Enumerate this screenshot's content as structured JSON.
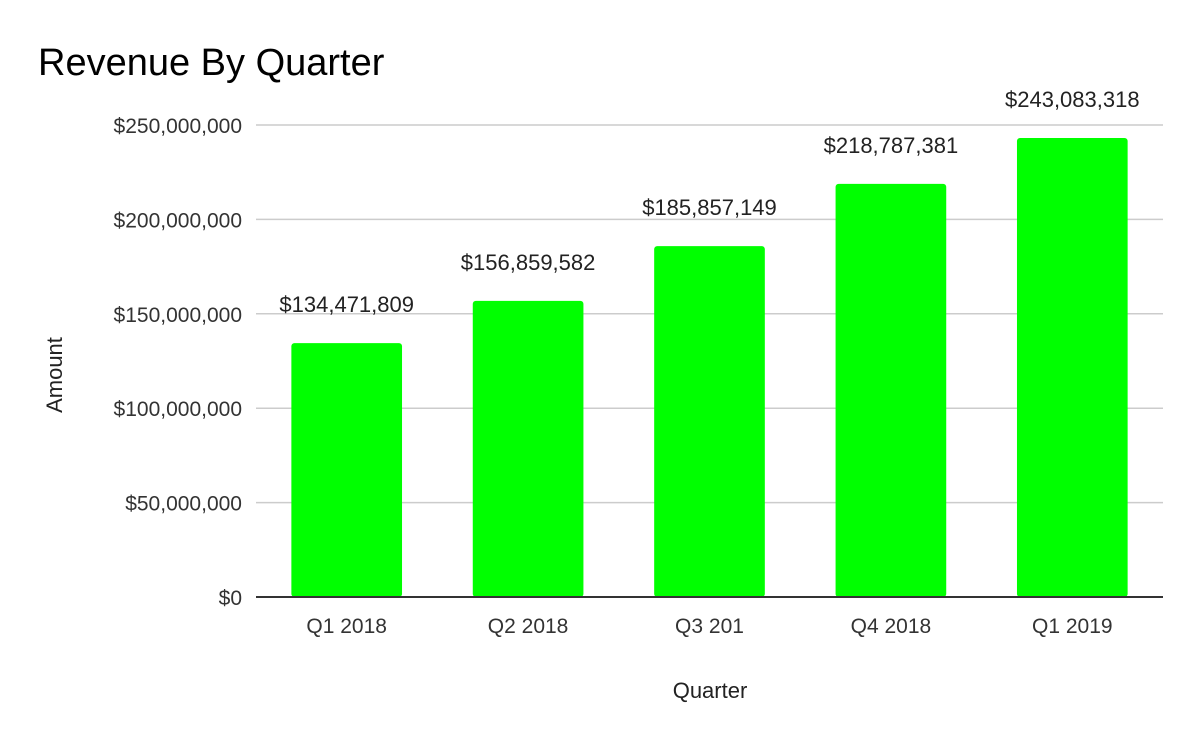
{
  "chart_data": {
    "type": "bar",
    "title": "Revenue By Quarter",
    "xlabel": "Quarter",
    "ylabel": "Amount",
    "categories": [
      "Q1 2018",
      "Q2 2018",
      "Q3 201",
      "Q4 2018",
      "Q1 2019"
    ],
    "values": [
      134471809,
      156859582,
      185857149,
      218787381,
      243083318
    ],
    "data_labels": [
      "$134,471,809",
      "$156,859,582",
      "$185,857,149",
      "$218,787,381",
      "$243,083,318"
    ],
    "ylim": [
      0,
      250000000
    ],
    "y_ticks": [
      0,
      50000000,
      100000000,
      150000000,
      200000000,
      250000000
    ],
    "y_tick_labels": [
      "$0",
      "$50,000,000",
      "$100,000,000",
      "$150,000,000",
      "$200,000,000",
      "$250,000,000"
    ],
    "grid": true,
    "legend": "none",
    "bar_color": "#00ff00",
    "gridline_color": "#cccccc",
    "baseline_color": "#333333"
  }
}
